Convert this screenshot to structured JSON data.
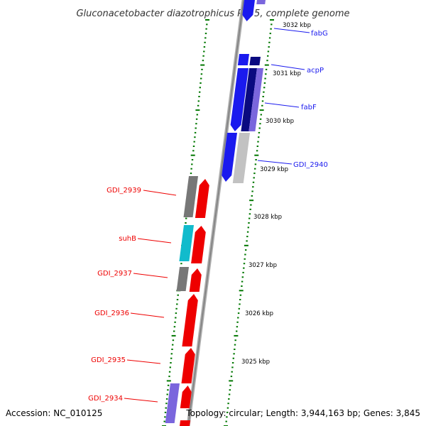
{
  "title": "Gluconacetobacter diazotrophicus PAl 5, complete genome",
  "accession": "Accession: NC_010125",
  "summary": "Topology: circular; Length: 3,944,163 bp; Genes: 3,845",
  "colors": {
    "forward": "#ee0000",
    "reverse": "#1a1aee",
    "reverse_dark": "#0a0a80",
    "reverse_light": "#7a66dd",
    "grey": "#777777",
    "light_grey": "#c2c2c2",
    "cyan": "#11bbcc",
    "tick": "#007700",
    "backbone": "#999999"
  },
  "kbp_labels": [
    {
      "text": "3032 kbp"
    },
    {
      "text": "3031 kbp"
    },
    {
      "text": "3030 kbp"
    },
    {
      "text": "3029 kbp"
    },
    {
      "text": "3028 kbp"
    },
    {
      "text": "3027 kbp"
    },
    {
      "text": "3026 kbp"
    },
    {
      "text": "3025 kbp"
    }
  ],
  "genes_right": [
    {
      "name": "fabG"
    },
    {
      "name": "acpP"
    },
    {
      "name": "fabF"
    },
    {
      "name": "GDI_2940"
    }
  ],
  "genes_left": [
    {
      "name": "GDI_2939"
    },
    {
      "name": "suhB"
    },
    {
      "name": "GDI_2937"
    },
    {
      "name": "GDI_2936"
    },
    {
      "name": "GDI_2935"
    },
    {
      "name": "GDI_2934"
    }
  ]
}
